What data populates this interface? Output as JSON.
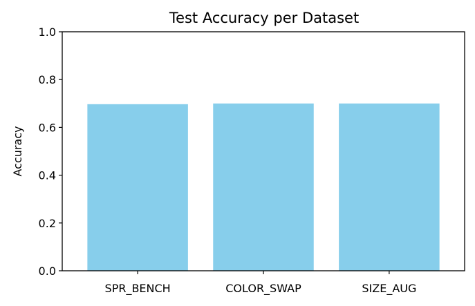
{
  "chart_data": {
    "type": "bar",
    "title": "Test Accuracy per Dataset",
    "xlabel": "",
    "ylabel": "Accuracy",
    "categories": [
      "SPR_BENCH",
      "COLOR_SWAP",
      "SIZE_AUG"
    ],
    "values": [
      0.697,
      0.7,
      0.7
    ],
    "ylim": [
      0,
      1.0
    ],
    "yticks": [
      "0.0",
      "0.2",
      "0.4",
      "0.6",
      "0.8",
      "1.0"
    ],
    "grid": false,
    "bar_color": "#87ceeb"
  }
}
